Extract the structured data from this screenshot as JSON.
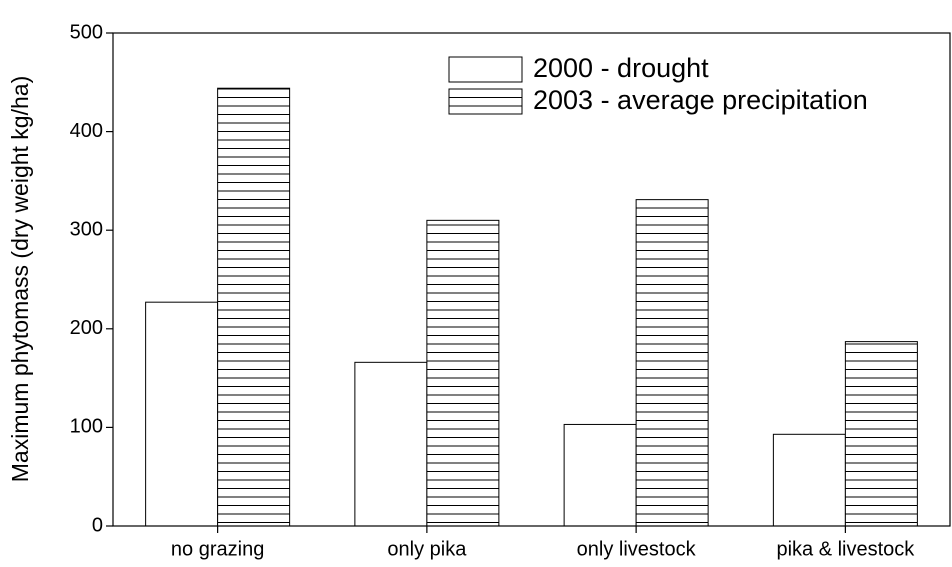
{
  "chart_data": {
    "type": "bar",
    "y_label": "Maximum phytomass (dry weight kg/ha)",
    "categories": [
      "no grazing",
      "only pika",
      "only livestock",
      "pika & livestock"
    ],
    "series": [
      {
        "name": "2000 - drought",
        "color": "#ffffff",
        "pattern": "none",
        "values": [
          227,
          166,
          103,
          93
        ]
      },
      {
        "name": "2003 - average precipitation",
        "color": "#ffffff",
        "pattern": "horizontal-hatch",
        "values": [
          444,
          310,
          331,
          187
        ]
      }
    ],
    "ylim": [
      0,
      500
    ],
    "yticks": [
      0,
      100,
      200,
      300,
      400,
      500
    ],
    "legend": "upper right"
  }
}
